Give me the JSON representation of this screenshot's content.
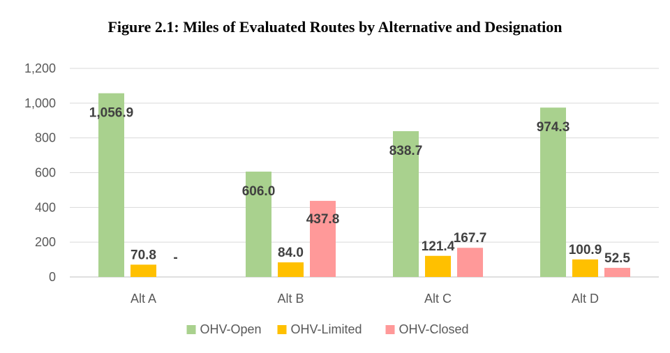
{
  "chart_data": {
    "type": "bar",
    "title": "Figure 2.1: Miles of Evaluated Routes by Alternative and Designation",
    "xlabel": "",
    "ylabel": "",
    "categories": [
      "Alt A",
      "Alt B",
      "Alt C",
      "Alt D"
    ],
    "ylim": [
      0,
      1200
    ],
    "yticks": [
      0,
      200,
      400,
      600,
      800,
      1000,
      1200
    ],
    "ytick_labels": [
      "0",
      "200",
      "400",
      "600",
      "800",
      "1,000",
      "1,200"
    ],
    "grid": true,
    "legend_position": "bottom",
    "series": [
      {
        "name": "OHV-Open",
        "color": "#a9d18e",
        "values": [
          1056.9,
          606.0,
          838.7,
          974.3
        ],
        "labels": [
          "1,056.9",
          "606.0",
          "838.7",
          "974.3"
        ]
      },
      {
        "name": "OHV-Limited",
        "color": "#ffc000",
        "values": [
          70.8,
          84.0,
          121.4,
          100.9
        ],
        "labels": [
          "70.8",
          "84.0",
          "121.4",
          "100.9"
        ]
      },
      {
        "name": "OHV-Closed",
        "color": "#ff9999",
        "values": [
          0,
          437.8,
          167.7,
          52.5
        ],
        "labels": [
          "-",
          "437.8",
          "167.7",
          "52.5"
        ]
      }
    ]
  }
}
